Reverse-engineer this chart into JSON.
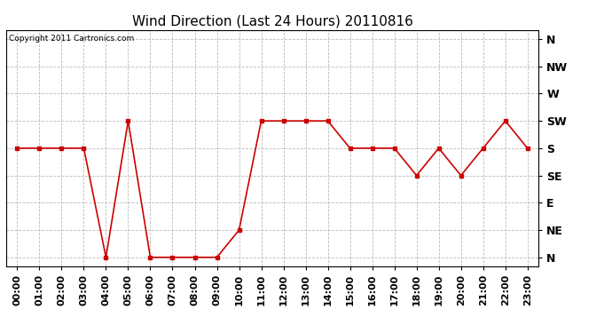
{
  "title": "Wind Direction (Last 24 Hours) 20110816",
  "copyright": "Copyright 2011 Cartronics.com",
  "hours": [
    "00:00",
    "01:00",
    "02:00",
    "03:00",
    "04:00",
    "05:00",
    "06:00",
    "07:00",
    "08:00",
    "09:00",
    "10:00",
    "11:00",
    "12:00",
    "13:00",
    "14:00",
    "15:00",
    "16:00",
    "17:00",
    "18:00",
    "19:00",
    "20:00",
    "21:00",
    "22:00",
    "23:00"
  ],
  "wind_values": [
    180,
    180,
    180,
    180,
    0,
    225,
    0,
    0,
    0,
    0,
    45,
    225,
    225,
    225,
    225,
    180,
    180,
    180,
    135,
    180,
    135,
    180,
    225,
    180
  ],
  "yticks": [
    360,
    315,
    270,
    225,
    180,
    135,
    90,
    45,
    0
  ],
  "ytick_labels": [
    "N",
    "NW",
    "W",
    "SW",
    "S",
    "SE",
    "E",
    "NE",
    "N"
  ],
  "line_color": "#cc0000",
  "marker": "s",
  "marker_size": 3,
  "bg_color": "#ffffff",
  "grid_color": "#aaaaaa",
  "title_fontsize": 11,
  "tick_fontsize": 8,
  "copyright_fontsize": 6.5,
  "ytick_fontsize": 9
}
